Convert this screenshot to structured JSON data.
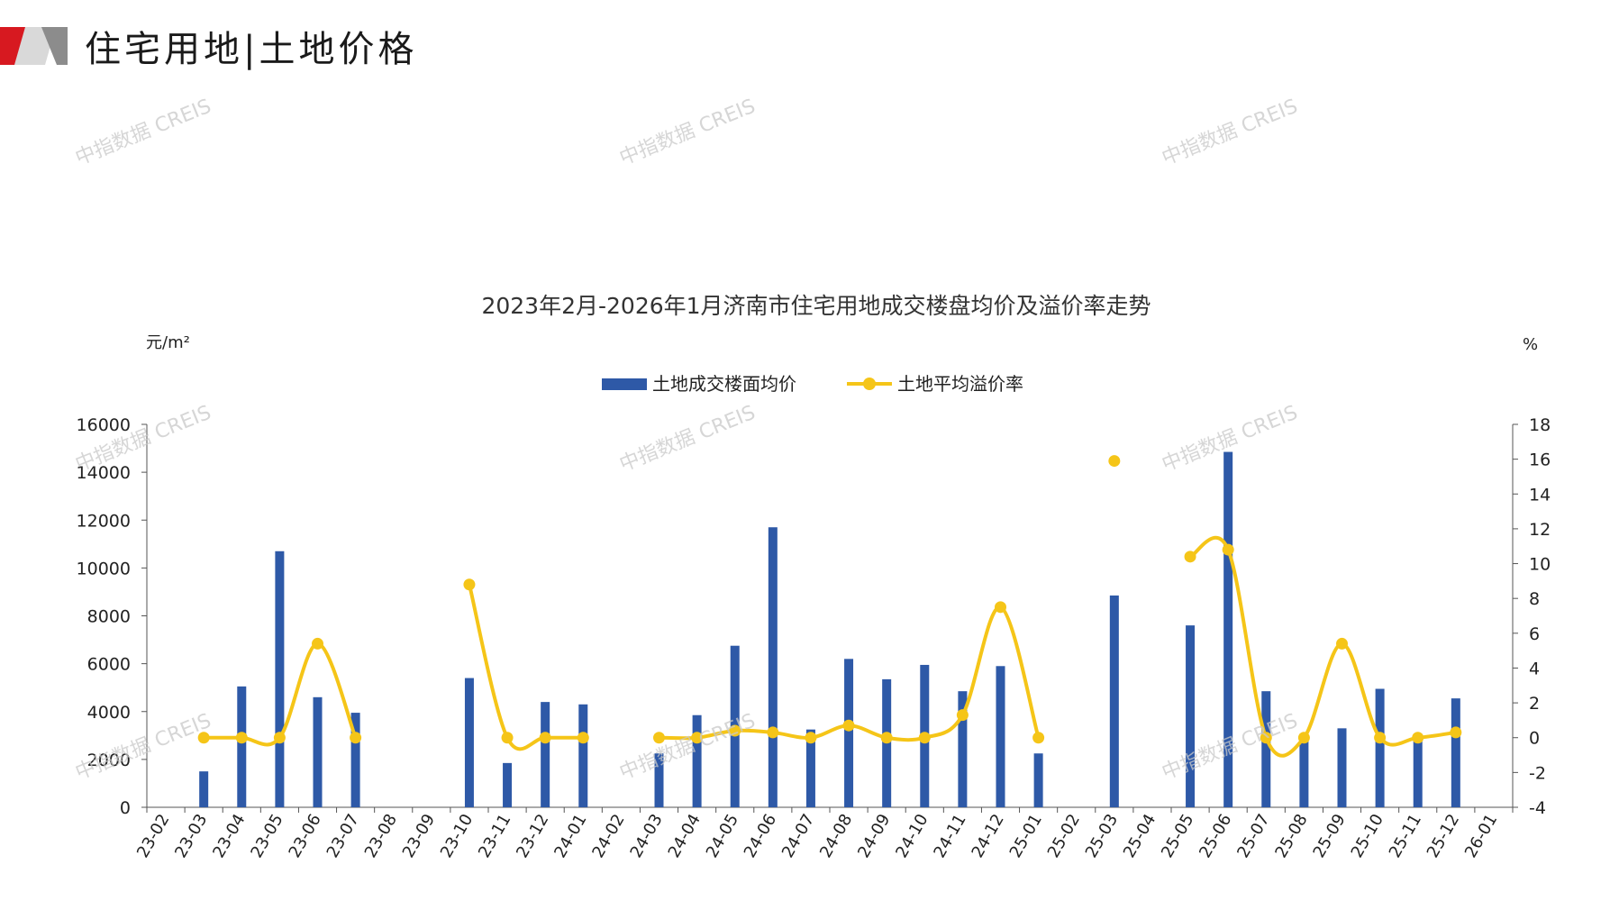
{
  "header": {
    "title": "住宅用地|土地价格"
  },
  "watermark": "中指数据 CREIS",
  "colors": {
    "bar": "#2E59A7",
    "line": "#F5C518",
    "logo_red": "#D71920",
    "logo_gray": "#8C8C8C"
  },
  "chart_data": {
    "type": "bar",
    "title": "2023年2月-2026年1月济南市住宅用地成交楼盘均价及溢价率走势",
    "y_left_unit": "元/m²",
    "y_right_unit": "%",
    "ylim_left": [
      0,
      16000
    ],
    "ylim_right": [
      -4,
      18
    ],
    "y_left_ticks": [
      "0",
      "2000",
      "4000",
      "6000",
      "8000",
      "10000",
      "12000",
      "14000",
      "16000"
    ],
    "y_right_ticks": [
      "-4",
      "-2",
      "0",
      "2",
      "4",
      "6",
      "8",
      "10",
      "12",
      "14",
      "16",
      "18"
    ],
    "legend_position": "top-center",
    "categories": [
      "23-02",
      "23-03",
      "23-04",
      "23-05",
      "23-06",
      "23-07",
      "23-08",
      "23-09",
      "23-10",
      "23-11",
      "23-12",
      "24-01",
      "24-02",
      "24-03",
      "24-04",
      "24-05",
      "24-06",
      "24-07",
      "24-08",
      "24-09",
      "24-10",
      "24-11",
      "24-12",
      "25-01",
      "25-02",
      "25-03",
      "25-04",
      "25-05",
      "25-06",
      "25-07",
      "25-08",
      "25-09",
      "25-10",
      "25-11",
      "25-12",
      "26-01"
    ],
    "series": [
      {
        "name": "土地成交楼面均价",
        "axis": "left",
        "kind": "bar",
        "values": [
          0,
          1500,
          5050,
          10700,
          4600,
          3950,
          0,
          0,
          5400,
          1850,
          4400,
          4300,
          0,
          2250,
          3850,
          6750,
          11700,
          3250,
          6200,
          5350,
          5950,
          4850,
          5900,
          2250,
          0,
          8850,
          0,
          7600,
          14850,
          4850,
          2950,
          3300,
          4950,
          3050,
          4550,
          0
        ]
      },
      {
        "name": "土地平均溢价率",
        "axis": "right",
        "kind": "line",
        "values": [
          null,
          0,
          0,
          0,
          5.4,
          0,
          null,
          null,
          8.8,
          0,
          0,
          0,
          null,
          0,
          0,
          0.4,
          0.3,
          0,
          0.7,
          0,
          0,
          1.3,
          7.5,
          0,
          null,
          15.9,
          null,
          10.4,
          10.8,
          0,
          0,
          5.4,
          0,
          0,
          0.3,
          null
        ]
      }
    ]
  }
}
